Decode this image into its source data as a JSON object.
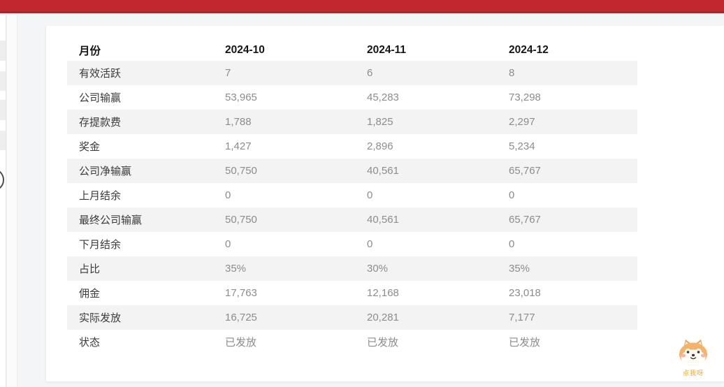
{
  "topbar": {
    "color": "#c2262e",
    "border_color": "#a5282d"
  },
  "sidebar": {
    "skeleton_block_count": 4
  },
  "report": {
    "columns": [
      "月份",
      "2024-10",
      "2024-11",
      "2024-12"
    ],
    "rows": [
      {
        "label": "有效活跃",
        "values": [
          "7",
          "6",
          "8"
        ]
      },
      {
        "label": "公司输赢",
        "values": [
          "53,965",
          "45,283",
          "73,298"
        ]
      },
      {
        "label": "存提款费",
        "values": [
          "1,788",
          "1,825",
          "2,297"
        ]
      },
      {
        "label": "奖金",
        "values": [
          "1,427",
          "2,896",
          "5,234"
        ]
      },
      {
        "label": "公司净输赢",
        "values": [
          "50,750",
          "40,561",
          "65,767"
        ]
      },
      {
        "label": "上月结余",
        "values": [
          "0",
          "0",
          "0"
        ]
      },
      {
        "label": "最终公司输赢",
        "values": [
          "50,750",
          "40,561",
          "65,767"
        ]
      },
      {
        "label": "下月结余",
        "values": [
          "0",
          "0",
          "0"
        ]
      },
      {
        "label": "占比",
        "values": [
          "35%",
          "30%",
          "35%"
        ]
      },
      {
        "label": "佣金",
        "values": [
          "17,763",
          "12,168",
          "23,018"
        ]
      },
      {
        "label": "实际发放",
        "values": [
          "16,725",
          "20,281",
          "7,177"
        ]
      },
      {
        "label": "状态",
        "values": [
          "已发放",
          "已发放",
          "已发放"
        ]
      }
    ],
    "stripe_color": "#f3f3f3"
  },
  "mascot": {
    "label": "点我呀"
  }
}
